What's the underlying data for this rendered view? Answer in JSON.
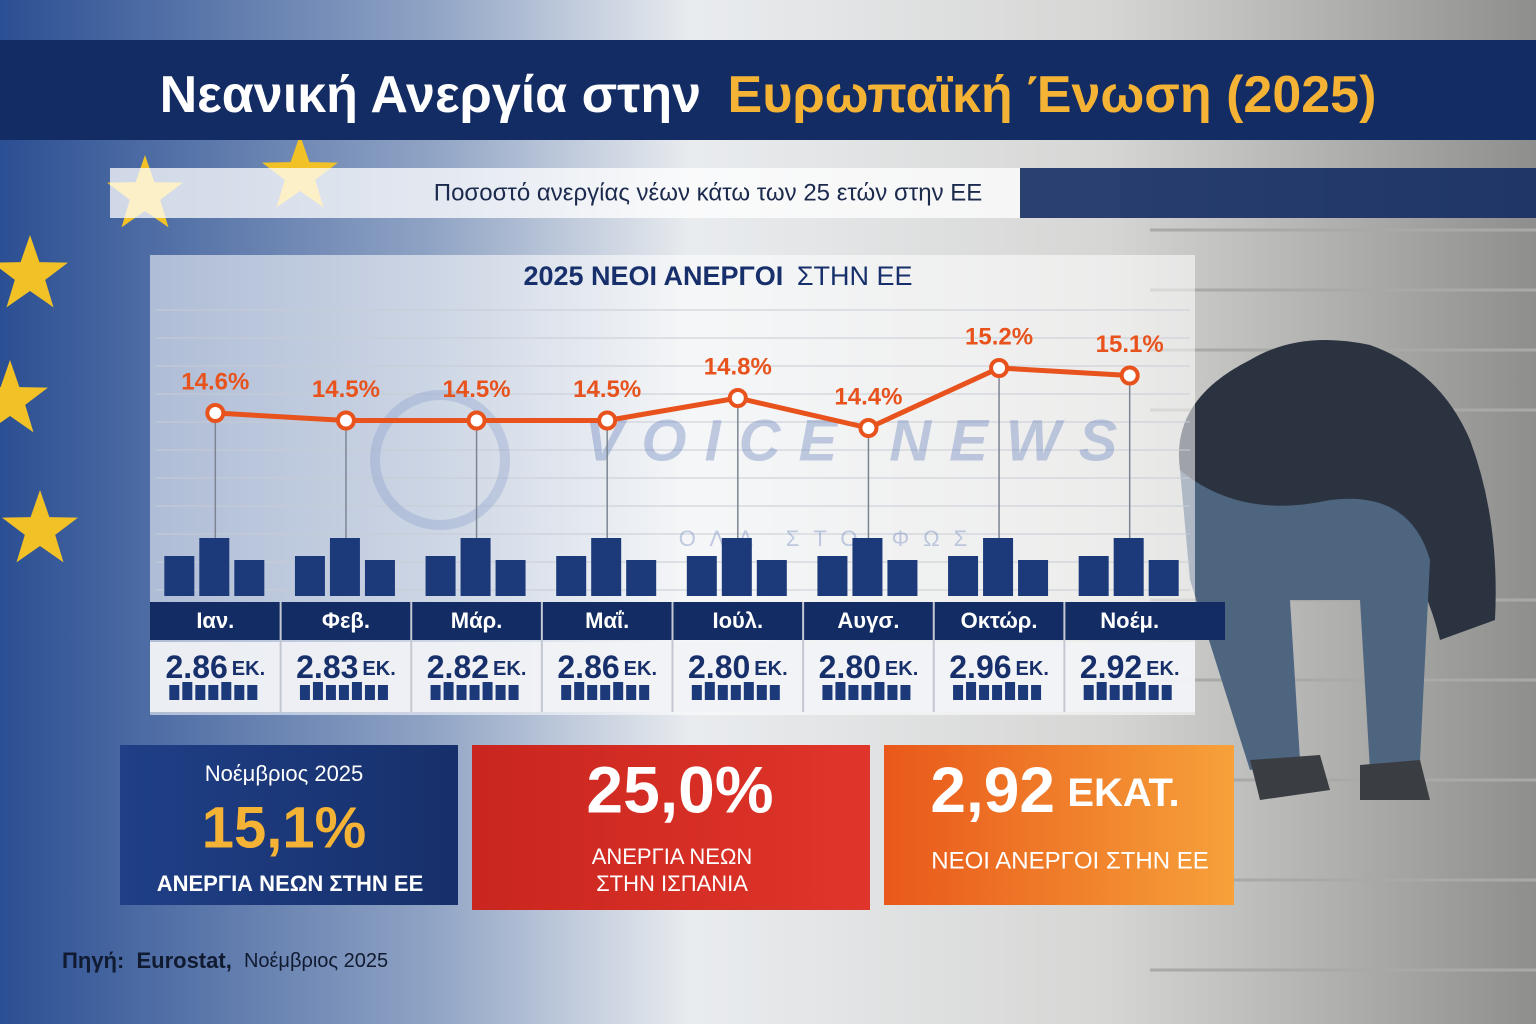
{
  "title": {
    "part1": "Νεανική Ανεργία στην",
    "part2": "Ευρωπαϊκή Ένωση (2025)"
  },
  "subtitle": "Ποσοστό ανεργίας νέων κάτω των 25 ετών στην ΕΕ",
  "watermark": {
    "brand": "VOICE NEWS",
    "tagline": "ΟΛΑ ΣΤΟ ΦΩΣ"
  },
  "chart_data": {
    "type": "line",
    "heading_bold": "2025 ΝΕΟΙ ΑΝΕΡΓΟΙ",
    "heading_rest": "ΣΤΗΝ ΕΕ",
    "categories": [
      "Ιαν.",
      "Φεβ.",
      "Μάρ.",
      "Μαΐ.",
      "Ιούλ.",
      "Αυγσ.",
      "Οκτώρ.",
      "Νοέμ."
    ],
    "series": [
      {
        "name": "Ποσοστό ανεργίας νέων",
        "color": "#e8521c",
        "values": [
          14.6,
          14.5,
          14.5,
          14.5,
          14.8,
          14.4,
          15.2,
          15.1
        ],
        "value_labels": [
          "14.6%",
          "14.5%",
          "14.5%",
          "14.5%",
          "14.8%",
          "14.4%",
          "15.2%",
          "15.1%"
        ]
      }
    ],
    "counts": [
      2.86,
      2.83,
      2.82,
      2.86,
      2.8,
      2.8,
      2.96,
      2.92
    ],
    "count_labels": [
      "2.86",
      "2.83",
      "2.82",
      "2.86",
      "2.80",
      "2.80",
      "2.96",
      "2.92"
    ],
    "count_unit": "ΕΚ."
  },
  "cards": [
    {
      "kicker": "Νοέμβριος 2025",
      "value": "15,1%",
      "label": "ΑΝΕΡΓΙΑ ΝΕΩΝ ΣΤΗΝ ΕΕ"
    },
    {
      "value": "25,0%",
      "label_line1": "ΑΝΕΡΓΙΑ ΝΕΩΝ",
      "label_line2": "ΣΤΗΝ ΙΣΠΑΝΙΑ"
    },
    {
      "value": "2,92",
      "unit": "ΕΚΑΤ.",
      "label": "ΝΕΟΙ ΑΝΕΡΓΟΙ ΣΤΗΝ ΕΕ"
    }
  ],
  "source": {
    "prefix": "Πηγή:",
    "name": "Eurostat,",
    "date": "Νοέμβριος 2025"
  }
}
